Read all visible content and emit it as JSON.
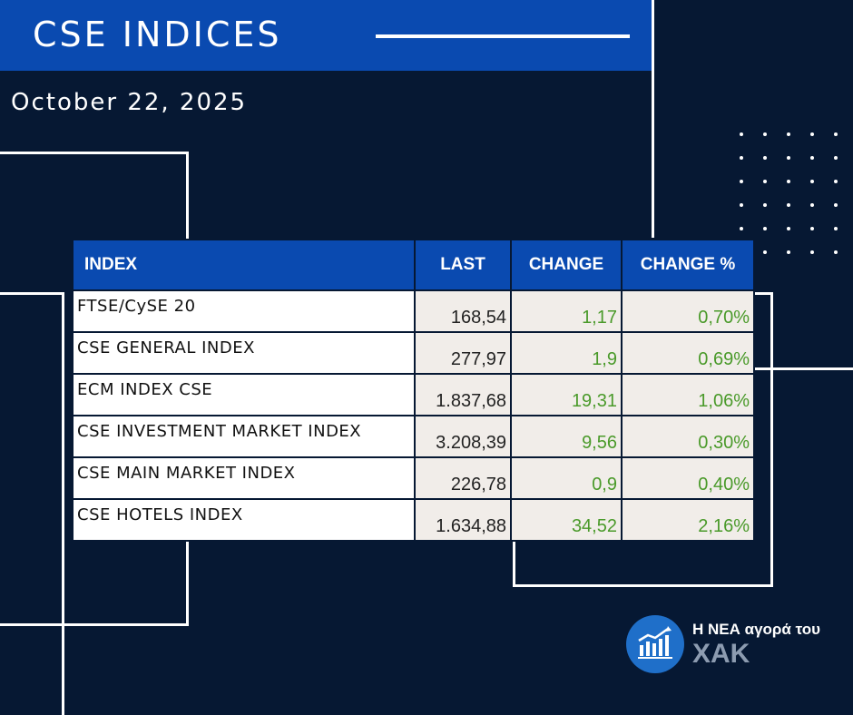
{
  "header": {
    "title": "CSE INDICES"
  },
  "date": "October 22, 2025",
  "table": {
    "headers": {
      "index": "INDEX",
      "last": "LAST",
      "change": "CHANGE",
      "change_pct": "CHANGE %"
    },
    "rows": [
      {
        "name": "FTSE/CySE 20",
        "last": "168,54",
        "change": "1,17",
        "change_pct": "0,70%"
      },
      {
        "name": "CSE GENERAL INDEX",
        "last": "277,97",
        "change": "1,9",
        "change_pct": "0,69%"
      },
      {
        "name": "ECM INDEX CSE",
        "last": "1.837,68",
        "change": "19,31",
        "change_pct": "1,06%"
      },
      {
        "name": "CSE INVESTMENT MARKET INDEX",
        "last": "3.208,39",
        "change": "9,56",
        "change_pct": "0,30%"
      },
      {
        "name": "CSE MAIN MARKET INDEX",
        "last": "226,78",
        "change": "0,9",
        "change_pct": "0,40%"
      },
      {
        "name": "CSE HOTELS INDEX",
        "last": "1.634,88",
        "change": "34,52",
        "change_pct": "2,16%"
      }
    ]
  },
  "logo": {
    "line1": "Η ΝΕΑ αγορά του",
    "line2": "ΧΑΚ",
    "icon": "bar-chart-icon"
  },
  "colors": {
    "background": "#061833",
    "accent": "#0a4ab0",
    "positive": "#4a9a2a"
  }
}
